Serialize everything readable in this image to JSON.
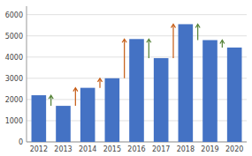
{
  "chart_data": {
    "type": "bar",
    "categories": [
      "2012",
      "2013",
      "2014",
      "2015",
      "2016",
      "2017",
      "2018",
      "2019",
      "2020"
    ],
    "values": [
      2200,
      1700,
      2550,
      3000,
      4850,
      3950,
      5550,
      4800,
      4450
    ],
    "color": "#4472C4",
    "ylim": [
      0,
      6400
    ],
    "yticks": [
      0,
      1000,
      2000,
      3000,
      4000,
      5000,
      6000
    ],
    "grid": true,
    "annotations": [
      {
        "from": 0,
        "to": 1,
        "color": "#538135"
      },
      {
        "from": 1,
        "to": 2,
        "color": "#C55A11"
      },
      {
        "from": 2,
        "to": 3,
        "color": "#C55A11"
      },
      {
        "from": 3,
        "to": 4,
        "color": "#C55A11"
      },
      {
        "from": 4,
        "to": 5,
        "color": "#538135"
      },
      {
        "from": 5,
        "to": 6,
        "color": "#C55A11"
      },
      {
        "from": 6,
        "to": 7,
        "color": "#538135"
      },
      {
        "from": 7,
        "to": 8,
        "color": "#538135"
      }
    ]
  }
}
